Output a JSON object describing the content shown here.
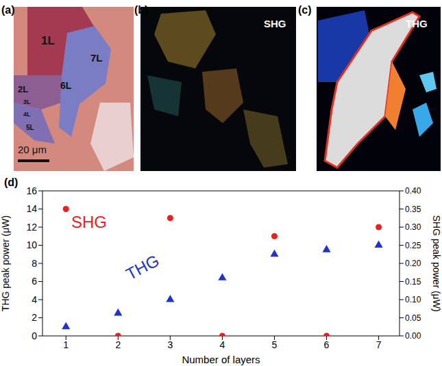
{
  "panels": {
    "a": {
      "label": "(a)",
      "layer_labels": [
        "1L",
        "2L",
        "3L",
        "4L",
        "5L",
        "6L",
        "7L"
      ],
      "scale_bar": "20 μm"
    },
    "b": {
      "label": "(b)",
      "title": "SHG"
    },
    "c": {
      "label": "(c)",
      "title": "THG"
    }
  },
  "chart_data": {
    "type": "scatter",
    "panel_label": "(d)",
    "x_label": "Number of layers",
    "y_label": "THG peak power (μW)",
    "y2_label": "SHG peak power (μW)",
    "xlim": [
      0.55,
      7.4
    ],
    "xticks": [
      1,
      2,
      3,
      4,
      5,
      6,
      7
    ],
    "ylim": [
      0,
      16
    ],
    "yticks": [
      0,
      2,
      4,
      6,
      8,
      10,
      12,
      14,
      16
    ],
    "y2lim": [
      0,
      0.4
    ],
    "y2ticks": [
      {
        "value": 0,
        "label": "0.00"
      },
      0.05,
      {
        "value": 0.1,
        "label": "0.10"
      },
      0.15,
      {
        "value": 0.2,
        "label": "0.20"
      },
      0.25,
      {
        "value": 0.3,
        "label": "0.30"
      },
      0.35,
      {
        "value": 0.4,
        "label": "0.40"
      }
    ],
    "series": [
      {
        "name": "THG",
        "color": "#2233cc",
        "marker": "triangle",
        "x": [
          1,
          2,
          3,
          4,
          5,
          6,
          7
        ],
        "values": [
          1.0,
          2.5,
          4.0,
          6.4,
          9.0,
          9.5,
          10.0
        ]
      },
      {
        "name": "SHG",
        "color": "#e82020",
        "marker": "circle",
        "axis": "y2",
        "x": [
          1,
          2,
          3,
          4,
          5,
          6,
          7
        ],
        "values": [
          0.35,
          0.0,
          0.325,
          0.0,
          0.275,
          0.0,
          0.3
        ]
      }
    ]
  }
}
